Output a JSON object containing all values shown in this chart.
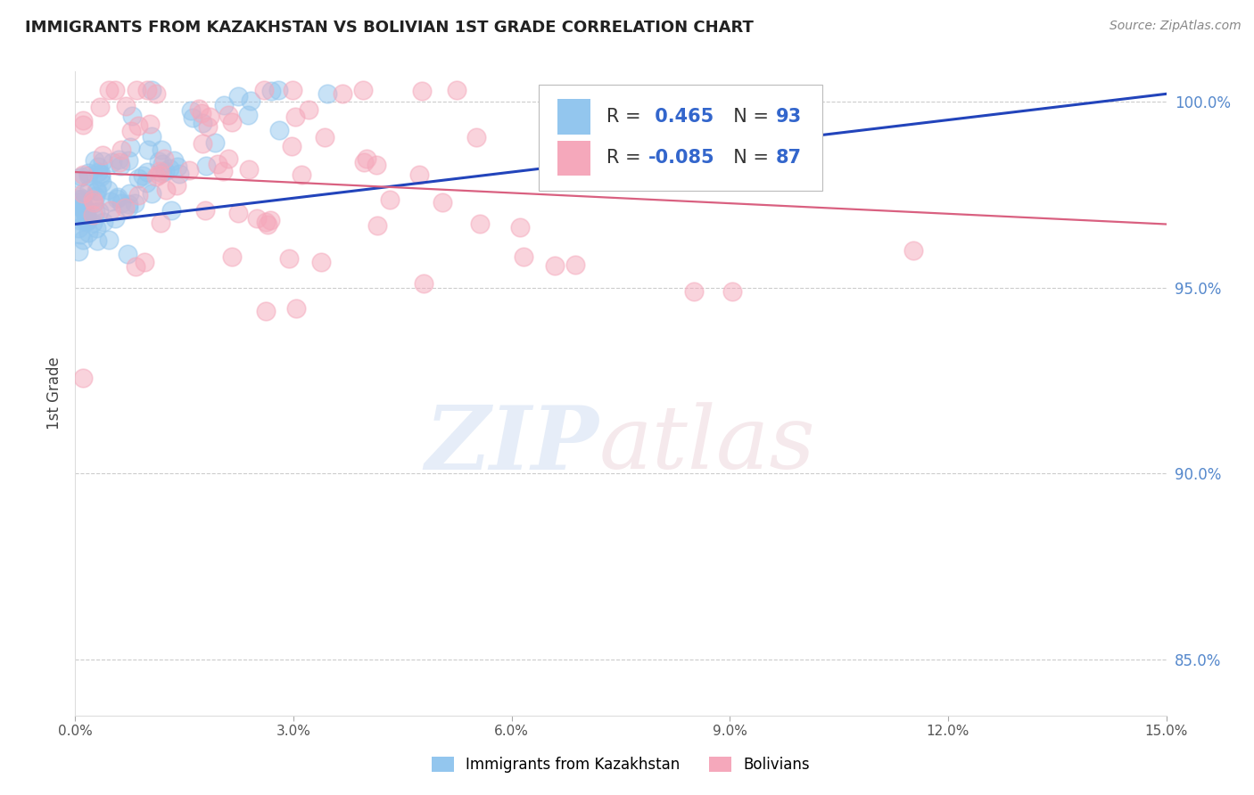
{
  "title": "IMMIGRANTS FROM KAZAKHSTAN VS BOLIVIAN 1ST GRADE CORRELATION CHART",
  "source_text": "Source: ZipAtlas.com",
  "ylabel": "1st Grade",
  "xlim": [
    0.0,
    0.15
  ],
  "ylim": [
    0.835,
    1.008
  ],
  "xticks": [
    0.0,
    0.03,
    0.06,
    0.09,
    0.12,
    0.15
  ],
  "xticklabels": [
    "0.0%",
    "3.0%",
    "6.0%",
    "9.0%",
    "12.0%",
    "15.0%"
  ],
  "yticks": [
    0.85,
    0.9,
    0.95,
    1.0
  ],
  "yticklabels": [
    "85.0%",
    "90.0%",
    "95.0%",
    "100.0%"
  ],
  "blue_color": "#93C6EE",
  "pink_color": "#F5A8BB",
  "blue_line_color": "#2244BB",
  "pink_line_color": "#D96080",
  "R_blue": 0.465,
  "N_blue": 93,
  "R_pink": -0.085,
  "N_pink": 87,
  "legend_label_blue": "Immigrants from Kazakhstan",
  "legend_label_pink": "Bolivians",
  "grid_color": "#CCCCCC",
  "background_color": "#FFFFFF",
  "tick_color": "#5588CC",
  "title_color": "#222222",
  "source_color": "#888888",
  "ylabel_color": "#444444",
  "infobox_text_color": "#333333",
  "infobox_value_color": "#3366CC"
}
